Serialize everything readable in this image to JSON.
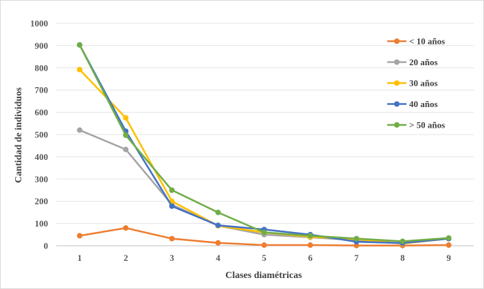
{
  "chart_data": {
    "type": "line",
    "xlabel": "Clases diamétricas",
    "ylabel": "Cantidad de individuos",
    "ylim": [
      0,
      1000
    ],
    "yticks": [
      "0",
      "100",
      "200",
      "300",
      "400",
      "500",
      "600",
      "700",
      "800",
      "900",
      "1000"
    ],
    "categories": [
      "1",
      "2",
      "3",
      "4",
      "5",
      "6",
      "7",
      "8",
      "9"
    ],
    "grid": true,
    "legend_position": "right",
    "series": [
      {
        "name": "< 10 años",
        "color": "#ED7D31",
        "values": [
          45,
          80,
          32,
          13,
          3,
          3,
          1,
          1,
          3
        ]
      },
      {
        "name": "20 años",
        "color": "#A5A5A5",
        "values": [
          520,
          433,
          185,
          90,
          50,
          38,
          25,
          10,
          32
        ]
      },
      {
        "name": "30 años",
        "color": "#FFC000",
        "values": [
          792,
          575,
          200,
          90,
          60,
          40,
          30,
          10,
          32
        ]
      },
      {
        "name": "40 años",
        "color": "#4472C4",
        "values": [
          903,
          515,
          178,
          92,
          73,
          50,
          18,
          12,
          32
        ]
      },
      {
        "name": "> 50 años",
        "color": "#70AD47",
        "values": [
          903,
          497,
          250,
          150,
          60,
          45,
          32,
          20,
          35
        ]
      }
    ]
  }
}
